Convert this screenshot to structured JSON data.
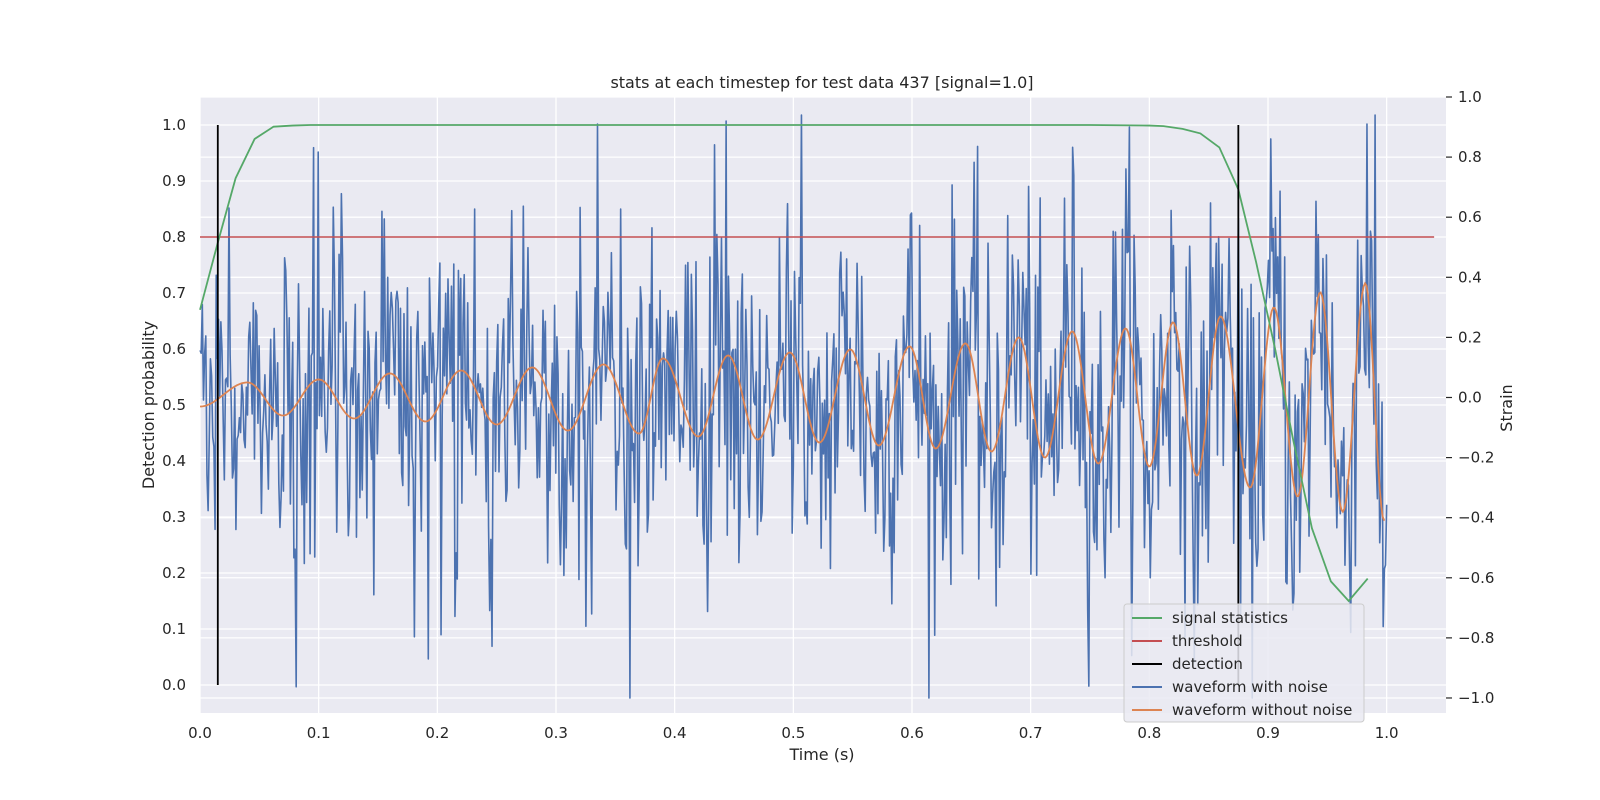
{
  "chart_data": {
    "type": "line",
    "title": "stats at each timestep for test data 437 [signal=1.0]",
    "xlabel": "Time (s)",
    "ylabel_left": "Detection probability",
    "ylabel_right": "Strain",
    "xlim": [
      0.0,
      1.05
    ],
    "ylim_left": [
      -0.05,
      1.05
    ],
    "ylim_right": [
      -1.05,
      1.0
    ],
    "x_ticks": [
      "0.0",
      "0.1",
      "0.2",
      "0.3",
      "0.4",
      "0.5",
      "0.6",
      "0.7",
      "0.8",
      "0.9",
      "1.0"
    ],
    "y_ticks_left": [
      "0.0",
      "0.1",
      "0.2",
      "0.3",
      "0.4",
      "0.5",
      "0.6",
      "0.7",
      "0.8",
      "0.9",
      "1.0"
    ],
    "y_ticks_right": [
      "−1.0",
      "−0.8",
      "−0.6",
      "−0.4",
      "−0.2",
      "0.0",
      "0.2",
      "0.4",
      "0.6",
      "0.8",
      "1.0"
    ],
    "grid": true,
    "legend_position": "bottom-right",
    "colors": {
      "signal_statistics": "#55a868",
      "threshold": "#c44e52",
      "detection": "#000000",
      "waveform_with_noise": "#4c72b0",
      "waveform_without_noise": "#dd8452",
      "plot_background": "#eaeaf2",
      "grid": "#ffffff"
    },
    "series": [
      {
        "name": "signal statistics",
        "axis": "left",
        "x": [
          0.0,
          0.015,
          0.03,
          0.046,
          0.062,
          0.078,
          0.093,
          0.2,
          0.4,
          0.6,
          0.75,
          0.8,
          0.812,
          0.828,
          0.843,
          0.859,
          0.875,
          0.89,
          0.906,
          0.921,
          0.937,
          0.953,
          0.968,
          0.984
        ],
        "values": [
          0.67,
          0.79,
          0.905,
          0.975,
          0.997,
          0.999,
          1.0,
          1.0,
          1.0,
          1.0,
          1.0,
          0.999,
          0.998,
          0.993,
          0.985,
          0.96,
          0.885,
          0.755,
          0.6,
          0.44,
          0.28,
          0.185,
          0.15,
          0.19
        ]
      },
      {
        "name": "threshold",
        "axis": "left",
        "x": [
          0.0,
          1.04
        ],
        "values": [
          0.8,
          0.8
        ]
      },
      {
        "name": "detection",
        "axis": "left",
        "segments": [
          {
            "x": 0.015,
            "y": [
              0.0,
              1.0
            ]
          },
          {
            "x": 0.875,
            "y": [
              0.0,
              1.0
            ]
          }
        ]
      },
      {
        "name": "waveform with noise",
        "axis": "right",
        "x_range": [
          0.0,
          1.0
        ],
        "sample_rate_hz": 1024,
        "noise_std": 0.3,
        "peaks": [
          {
            "x": 0.335,
            "value": 0.91
          },
          {
            "x": 0.443,
            "value": 0.92
          },
          {
            "x": 0.507,
            "value": 0.94
          },
          {
            "x": 0.983,
            "value": 0.91
          }
        ],
        "troughs": [
          {
            "x": 0.362,
            "value": -1.0
          },
          {
            "x": 0.192,
            "value": -0.87
          }
        ]
      },
      {
        "name": "waveform without noise",
        "axis": "right",
        "x_range": [
          0.0,
          1.0
        ],
        "start": {
          "x": 0.0,
          "value": -0.03
        },
        "extrema": [
          {
            "x": 0.04,
            "value": 0.05
          },
          {
            "x": 0.07,
            "value": -0.06
          },
          {
            "x": 0.1,
            "value": 0.06
          },
          {
            "x": 0.13,
            "value": -0.07
          },
          {
            "x": 0.16,
            "value": 0.08
          },
          {
            "x": 0.19,
            "value": -0.08
          },
          {
            "x": 0.22,
            "value": 0.09
          },
          {
            "x": 0.25,
            "value": -0.09
          },
          {
            "x": 0.28,
            "value": 0.1
          },
          {
            "x": 0.31,
            "value": -0.11
          },
          {
            "x": 0.34,
            "value": 0.11
          },
          {
            "x": 0.37,
            "value": -0.12
          },
          {
            "x": 0.39,
            "value": 0.13
          },
          {
            "x": 0.42,
            "value": -0.13
          },
          {
            "x": 0.445,
            "value": 0.14
          },
          {
            "x": 0.47,
            "value": -0.14
          },
          {
            "x": 0.497,
            "value": 0.15
          },
          {
            "x": 0.522,
            "value": -0.15
          },
          {
            "x": 0.548,
            "value": 0.16
          },
          {
            "x": 0.572,
            "value": -0.16
          },
          {
            "x": 0.598,
            "value": 0.17
          },
          {
            "x": 0.62,
            "value": -0.17
          },
          {
            "x": 0.645,
            "value": 0.18
          },
          {
            "x": 0.667,
            "value": -0.18
          },
          {
            "x": 0.69,
            "value": 0.2
          },
          {
            "x": 0.712,
            "value": -0.2
          },
          {
            "x": 0.735,
            "value": 0.22
          },
          {
            "x": 0.757,
            "value": -0.22
          },
          {
            "x": 0.78,
            "value": 0.23
          },
          {
            "x": 0.8,
            "value": -0.23
          },
          {
            "x": 0.82,
            "value": 0.25
          },
          {
            "x": 0.84,
            "value": -0.26
          },
          {
            "x": 0.86,
            "value": 0.27
          },
          {
            "x": 0.885,
            "value": -0.3
          },
          {
            "x": 0.905,
            "value": 0.3
          },
          {
            "x": 0.925,
            "value": -0.33
          },
          {
            "x": 0.944,
            "value": 0.35
          },
          {
            "x": 0.963,
            "value": -0.38
          },
          {
            "x": 0.982,
            "value": 0.38
          }
        ],
        "end": {
          "x": 0.998,
          "value": -0.41
        }
      }
    ],
    "legend": [
      {
        "label": "signal statistics",
        "color": "#55a868"
      },
      {
        "label": "threshold",
        "color": "#c44e52"
      },
      {
        "label": "detection",
        "color": "#000000"
      },
      {
        "label": "waveform with noise",
        "color": "#4c72b0"
      },
      {
        "label": "waveform without noise",
        "color": "#dd8452"
      }
    ]
  }
}
